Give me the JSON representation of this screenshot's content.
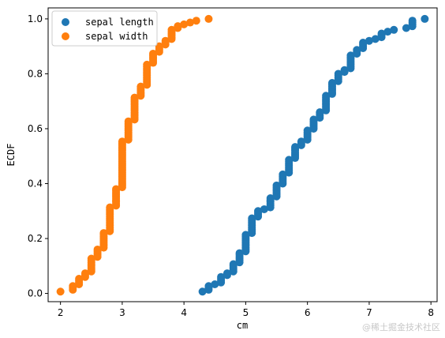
{
  "chart_data": {
    "type": "scatter",
    "title": "",
    "xlabel": "cm",
    "ylabel": "ECDF",
    "xlim": [
      1.8,
      8.1
    ],
    "ylim": [
      -0.03,
      1.04
    ],
    "xticks": [
      2,
      3,
      4,
      5,
      6,
      7,
      8
    ],
    "yticks": [
      0.0,
      0.2,
      0.4,
      0.6,
      0.8,
      1.0
    ],
    "xtick_labels": [
      "2",
      "3",
      "4",
      "5",
      "6",
      "7",
      "8"
    ],
    "ytick_labels": [
      "0.0",
      "0.2",
      "0.4",
      "0.6",
      "0.8",
      "1.0"
    ],
    "grid": false,
    "legend_position": "top-left",
    "series": [
      {
        "name": "sepal length",
        "color": "#1f77b4",
        "counts": {
          "4.3": 1,
          "4.4": 3,
          "4.5": 1,
          "4.6": 4,
          "4.7": 2,
          "4.8": 5,
          "4.9": 6,
          "5.0": 10,
          "5.1": 9,
          "5.2": 4,
          "5.3": 1,
          "5.4": 6,
          "5.5": 7,
          "5.6": 6,
          "5.7": 8,
          "5.8": 7,
          "5.9": 3,
          "6.0": 6,
          "6.1": 6,
          "6.2": 4,
          "6.3": 9,
          "6.4": 7,
          "6.5": 5,
          "6.6": 2,
          "6.7": 8,
          "6.8": 3,
          "6.9": 4,
          "7.0": 1,
          "7.1": 1,
          "7.2": 3,
          "7.3": 1,
          "7.4": 1,
          "7.6": 1,
          "7.7": 4,
          "7.9": 1
        }
      },
      {
        "name": "sepal width",
        "color": "#ff7f0e",
        "counts": {
          "2.0": 1,
          "2.2": 3,
          "2.3": 4,
          "2.4": 3,
          "2.5": 8,
          "2.6": 5,
          "2.7": 9,
          "2.8": 14,
          "2.9": 10,
          "3.0": 26,
          "3.1": 11,
          "3.2": 13,
          "3.3": 6,
          "3.4": 12,
          "3.5": 6,
          "3.6": 4,
          "3.7": 3,
          "3.8": 6,
          "3.9": 2,
          "4.0": 1,
          "4.1": 1,
          "4.2": 1,
          "4.4": 1
        }
      }
    ]
  },
  "watermark": "@稀土掘金技术社区"
}
